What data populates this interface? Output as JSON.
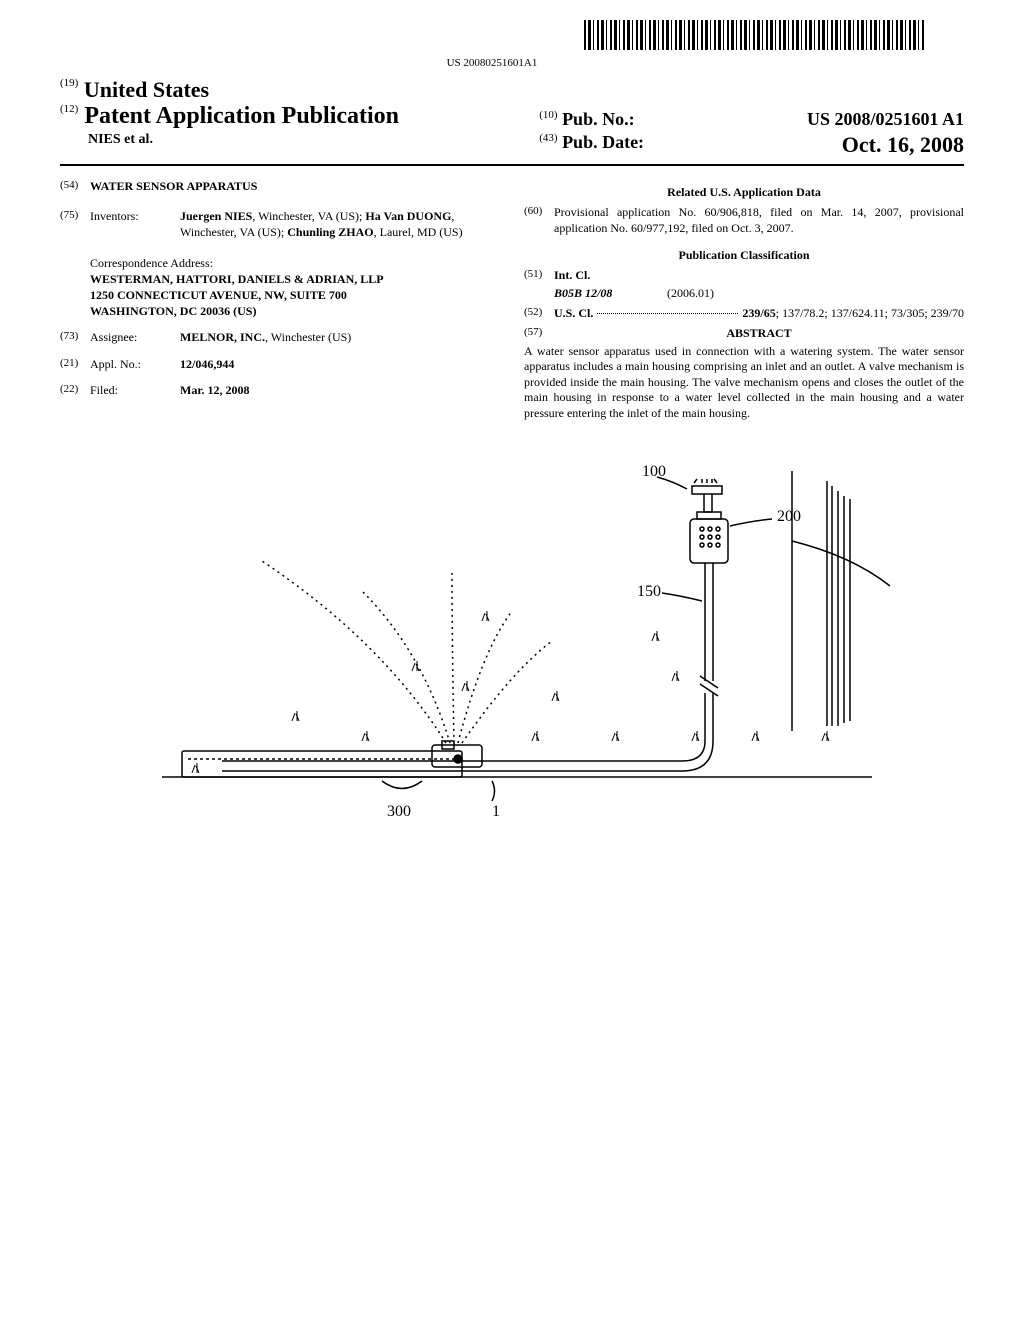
{
  "barcode_text": "US 20080251601A1",
  "header": {
    "country_code": "(19)",
    "country": "United States",
    "pubtype_code": "(12)",
    "pubtype": "Patent Application Publication",
    "authors": "NIES et al.",
    "pubno_code": "(10)",
    "pubno_label": "Pub. No.:",
    "pubno": "US 2008/0251601 A1",
    "pubdate_code": "(43)",
    "pubdate_label": "Pub. Date:",
    "pubdate": "Oct. 16, 2008"
  },
  "left_col": {
    "title_code": "(54)",
    "title": "WATER SENSOR APPARATUS",
    "inventors_code": "(75)",
    "inventors_label": "Inventors:",
    "inventors_html": "<b>Juergen NIES</b>, Winchester, VA (US); <b>Ha Van DUONG</b>, Winchester, VA (US); <b>Chunling ZHAO</b>, Laurel, MD (US)",
    "corr_label": "Correspondence Address:",
    "corr_name": "WESTERMAN, HATTORI, DANIELS & ADRIAN, LLP",
    "corr_addr1": "1250 CONNECTICUT AVENUE, NW, SUITE 700",
    "corr_addr2": "WASHINGTON, DC 20036 (US)",
    "assignee_code": "(73)",
    "assignee_label": "Assignee:",
    "assignee": "MELNOR, INC.",
    "assignee_loc": ", Winchester (US)",
    "applno_code": "(21)",
    "applno_label": "Appl. No.:",
    "applno": "12/046,944",
    "filed_code": "(22)",
    "filed_label": "Filed:",
    "filed": "Mar. 12, 2008"
  },
  "right_col": {
    "related_title": "Related U.S. Application Data",
    "related_code": "(60)",
    "related_text": "Provisional application No. 60/906,818, filed on Mar. 14, 2007, provisional application No. 60/977,192, filed on Oct. 3, 2007.",
    "class_title": "Publication Classification",
    "intcl_code": "(51)",
    "intcl_label": "Int. Cl.",
    "intcl_class": "B05B 12/08",
    "intcl_date": "(2006.01)",
    "uscl_code": "(52)",
    "uscl_label": "U.S. Cl.",
    "uscl_val1": "239/65",
    "uscl_val2": "; 137/78.2; 137/624.11; 73/305; 239/70",
    "abstract_code": "(57)",
    "abstract_label": "ABSTRACT",
    "abstract_text": "A water sensor apparatus used in connection with a watering system. The water sensor apparatus includes a main housing comprising an inlet and an outlet. A valve mechanism is provided inside the main housing. The valve mechanism opens and closes the outlet of the main housing in response to a water level collected in the main housing and a water pressure entering the inlet of the main housing."
  },
  "figure": {
    "labels": {
      "l100": "100",
      "l200": "200",
      "l150": "150",
      "l300": "300",
      "l1": "1"
    }
  }
}
